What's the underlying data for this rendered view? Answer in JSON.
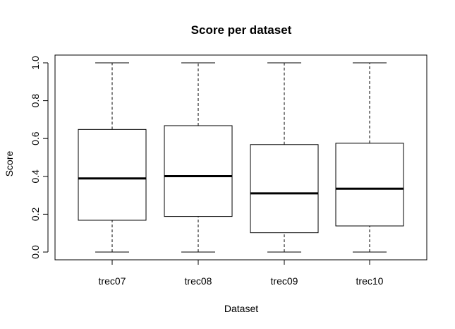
{
  "chart_data": {
    "type": "boxplot",
    "title": "Score per dataset",
    "xlabel": "Dataset",
    "ylabel": "Score",
    "ylim": [
      0,
      1
    ],
    "y_ticks": [
      "0.0",
      "0.2",
      "0.4",
      "0.6",
      "0.8",
      "1.0"
    ],
    "grid": false,
    "categories": [
      "trec07",
      "trec08",
      "trec09",
      "trec10"
    ],
    "boxes": [
      {
        "min": 0.0,
        "q1": 0.168,
        "median": 0.389,
        "q3": 0.648,
        "max": 1.0
      },
      {
        "min": 0.0,
        "q1": 0.188,
        "median": 0.401,
        "q3": 0.668,
        "max": 1.0
      },
      {
        "min": 0.0,
        "q1": 0.102,
        "median": 0.31,
        "q3": 0.568,
        "max": 1.0
      },
      {
        "min": 0.0,
        "q1": 0.138,
        "median": 0.335,
        "q3": 0.575,
        "max": 1.0
      }
    ]
  }
}
